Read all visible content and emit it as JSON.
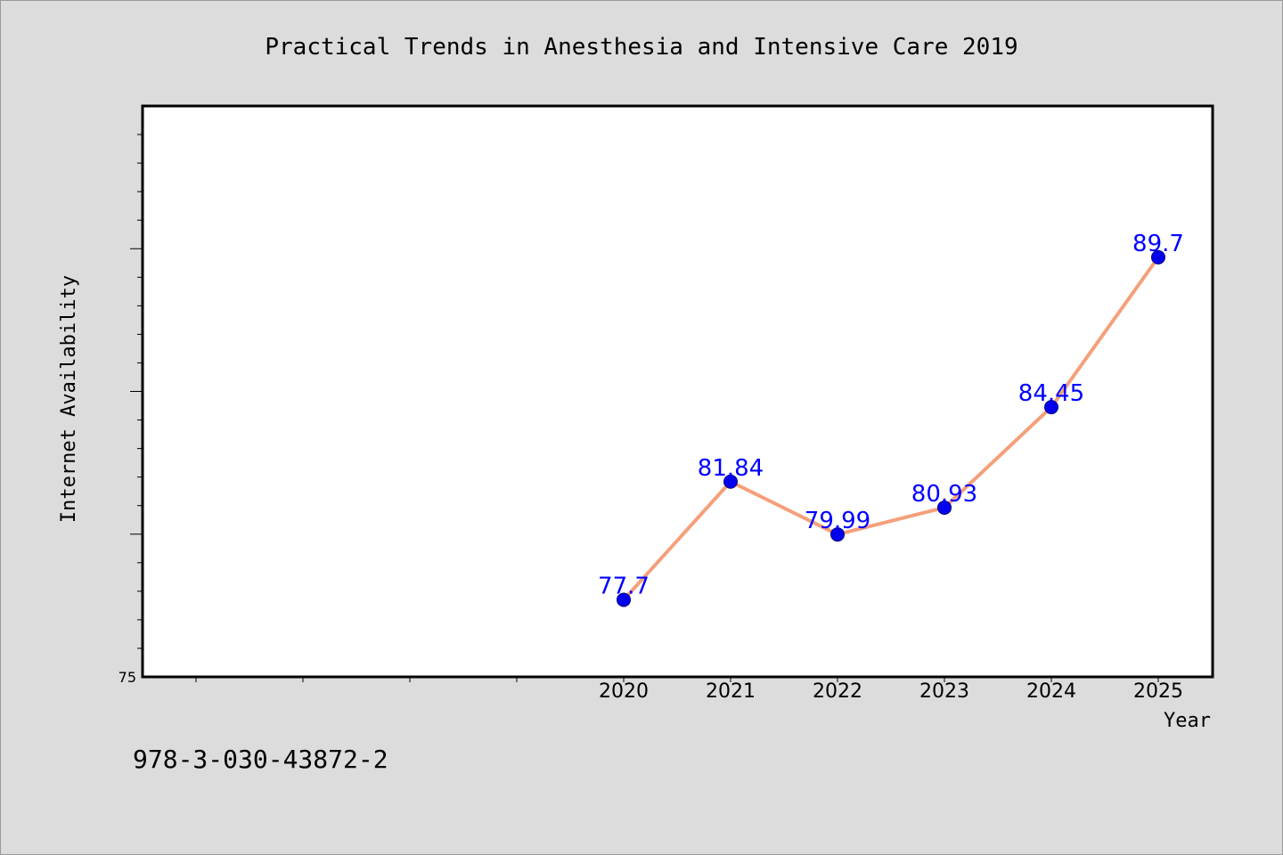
{
  "chart_data": {
    "type": "line",
    "title": "Practical Trends in Anesthesia and Intensive Care 2019",
    "xlabel": "Year",
    "ylabel": "Internet Availability",
    "x": [
      "2020",
      "2021",
      "2022",
      "2023",
      "2024",
      "2025"
    ],
    "series": [
      {
        "values": [
          77.7,
          81.84,
          79.99,
          80.93,
          84.45,
          89.7
        ],
        "labels": [
          "77.7",
          "81.84",
          "79.99",
          "80.93",
          "84.45",
          "89.7"
        ],
        "color": "#f4a07a",
        "marker_color": "#0000ee",
        "label_color": "#0000ff"
      }
    ],
    "ylim": [
      75,
      95
    ],
    "y_tick_labels": [
      "75"
    ],
    "grid": false,
    "legend": "none"
  },
  "footer": {
    "isbn": "978-3-030-43872-2"
  }
}
